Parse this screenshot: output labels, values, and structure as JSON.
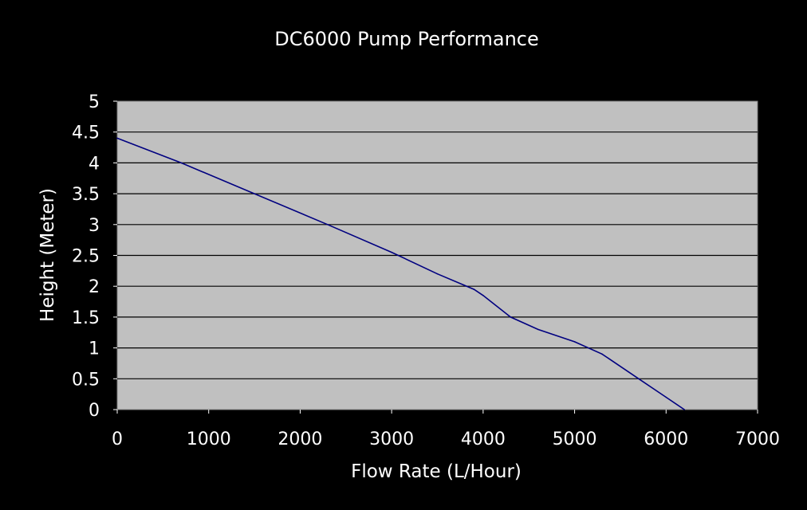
{
  "chart_data": {
    "type": "line",
    "title": "DC6000 Pump Performance",
    "xlabel": "Flow Rate (L/Hour)",
    "ylabel": "Height (Meter)",
    "xlim": [
      0,
      7000
    ],
    "ylim": [
      0,
      5
    ],
    "x_ticks": [
      "0",
      "1000",
      "2000",
      "3000",
      "4000",
      "5000",
      "6000",
      "7000"
    ],
    "y_ticks": [
      "0",
      "0.5",
      "1",
      "1.5",
      "2",
      "2.5",
      "3",
      "3.5",
      "4",
      "4.5",
      "5"
    ],
    "grid": "horizontal",
    "legend": "none",
    "series": [
      {
        "x": [
          0,
          700,
          1500,
          2300,
          3000,
          3500,
          3900,
          4000,
          4300,
          4600,
          5000,
          5300,
          5700,
          6000,
          6200
        ],
        "y": [
          4.4,
          4.0,
          3.5,
          3.0,
          2.55,
          2.2,
          1.95,
          1.85,
          1.5,
          1.3,
          1.1,
          0.9,
          0.5,
          0.2,
          0.0
        ]
      }
    ],
    "colors": {
      "background": "#000000",
      "plot_area": "#c0c0c0",
      "grid": "#000000",
      "line": "#000080",
      "text": "#ffffff"
    }
  }
}
